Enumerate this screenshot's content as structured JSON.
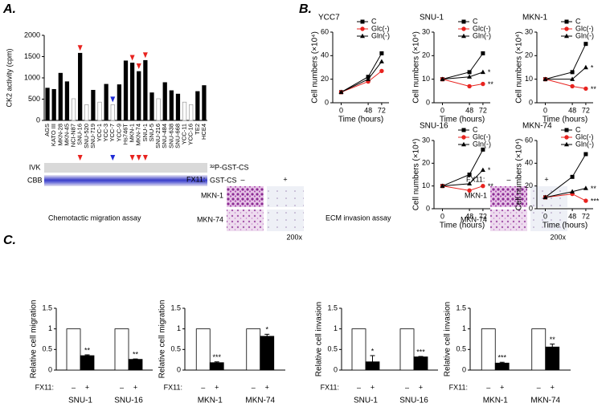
{
  "figure": {
    "panel_labels": [
      "A.",
      "B.",
      "C."
    ],
    "blot": {
      "rows": [
        "IVK",
        "CBB"
      ],
      "bands": [
        "³²P-GST-CS",
        "GST-CS"
      ]
    },
    "assays": [
      "Chemotactic migration assay",
      "ECM invasion assay"
    ],
    "micrographs": [
      {
        "treatment_label": "FX11:",
        "conditions": [
          "–",
          "+"
        ],
        "cell_lines": [
          "MKN-1",
          "MKN-74"
        ],
        "magnification": "200x"
      },
      {
        "treatment_label": "FX11:",
        "conditions": [
          "–",
          "+"
        ],
        "cell_lines": [
          "MKN-1",
          "MKN-74"
        ],
        "magnification": "200x"
      }
    ]
  },
  "chart_data": [
    {
      "type": "bar",
      "ylabel": "CK2 activity (cpm)",
      "categories": [
        "AGS",
        "KATO III",
        "MKN-28",
        "MKN-45",
        "NCI-N87",
        "SNU-16",
        "SNU-520",
        "SNU-719",
        "YCC-1",
        "YCC-3",
        "YCC-7",
        "YCC-9",
        "Hs746T",
        "MKN-1",
        "MKN-74",
        "SNU-1",
        "SNU-5",
        "SNU-216",
        "SNU-484",
        "SNU-638",
        "SNU-668",
        "YCC-11",
        "YCC-16",
        "TE2",
        "HCE4"
      ],
      "values": [
        760,
        730,
        1110,
        910,
        510,
        1580,
        370,
        710,
        430,
        850,
        370,
        840,
        1400,
        1350,
        1150,
        1410,
        650,
        510,
        890,
        700,
        620,
        430,
        370,
        680,
        820
      ],
      "colors": [
        "#000000",
        "#000000",
        "#000000",
        "#000000",
        "#ffffff",
        "#000000",
        "#ffffff",
        "#000000",
        "#ffffff",
        "#000000",
        "#ffffff",
        "#000000",
        "#000000",
        "#000000",
        "#000000",
        "#000000",
        "#000000",
        "#ffffff",
        "#000000",
        "#000000",
        "#000000",
        "#ffffff",
        "#ffffff",
        "#000000",
        "#000000"
      ],
      "arrow_colors": [
        null,
        null,
        null,
        null,
        null,
        "#e8231f",
        null,
        null,
        null,
        null,
        "#1e2bd6",
        null,
        null,
        "#e8231f",
        "#e8231f",
        "#e8231f",
        null,
        null,
        null,
        null,
        null,
        null,
        null,
        null,
        null
      ],
      "ylim": [
        0,
        2000
      ],
      "yticks": [
        0,
        500,
        1000,
        1500,
        2000
      ]
    },
    {
      "type": "line",
      "title": "YCC7",
      "ylabel": "Cell numbers (×10⁴)",
      "xlabel": "Time (hours)",
      "x": [
        0,
        48,
        72
      ],
      "xlim": [
        -15,
        85
      ],
      "xticks": [
        0,
        48,
        72
      ],
      "ylim": [
        0,
        60
      ],
      "yticks": [
        0,
        20,
        40,
        60
      ],
      "series": [
        {
          "name": "C",
          "color": "#000000",
          "marker": "square",
          "values": [
            9,
            22,
            42
          ]
        },
        {
          "name": "Glc(-)",
          "color": "#e8231f",
          "marker": "circle",
          "values": [
            9,
            18,
            27
          ]
        },
        {
          "name": "Gln(-)",
          "color": "#000000",
          "marker": "triangle",
          "values": [
            9,
            20,
            35
          ]
        }
      ]
    },
    {
      "type": "line",
      "title": "SNU-1",
      "ylabel": "Cell numbers (×10⁴)",
      "xlabel": "Time (hours)",
      "x": [
        0,
        48,
        72
      ],
      "xlim": [
        -15,
        85
      ],
      "xticks": [
        0,
        48,
        72
      ],
      "ylim": [
        0,
        30
      ],
      "yticks": [
        0,
        10,
        20,
        30
      ],
      "series": [
        {
          "name": "C",
          "color": "#000000",
          "marker": "square",
          "values": [
            10,
            13,
            21
          ]
        },
        {
          "name": "Glc(-)",
          "color": "#e8231f",
          "marker": "circle",
          "values": [
            10,
            7,
            8
          ],
          "annotation": "**"
        },
        {
          "name": "Gln(-)",
          "color": "#000000",
          "marker": "triangle",
          "values": [
            10,
            11,
            13
          ],
          "annotation": "*"
        }
      ]
    },
    {
      "type": "line",
      "title": "MKN-1",
      "ylabel": "Cell numbers (×10⁴)",
      "xlabel": "Time (hours)",
      "x": [
        0,
        48,
        72
      ],
      "xlim": [
        -15,
        85
      ],
      "xticks": [
        0,
        48,
        72
      ],
      "ylim": [
        0,
        30
      ],
      "yticks": [
        0,
        10,
        20,
        30
      ],
      "series": [
        {
          "name": "C",
          "color": "#000000",
          "marker": "square",
          "values": [
            10,
            13,
            25
          ]
        },
        {
          "name": "Glc(-)",
          "color": "#e8231f",
          "marker": "circle",
          "values": [
            10,
            7,
            6
          ],
          "annotation": "**"
        },
        {
          "name": "Gln(-)",
          "color": "#000000",
          "marker": "triangle",
          "values": [
            10,
            10,
            15
          ],
          "annotation": "*"
        }
      ]
    },
    {
      "type": "line",
      "title": "SNU-16",
      "ylabel": "Cell numbers (×10⁴)",
      "xlabel": "Time (hours)",
      "x": [
        0,
        48,
        72
      ],
      "xlim": [
        -15,
        85
      ],
      "xticks": [
        0,
        48,
        72
      ],
      "ylim": [
        0,
        30
      ],
      "yticks": [
        0,
        10,
        20,
        30
      ],
      "series": [
        {
          "name": "C",
          "color": "#000000",
          "marker": "square",
          "values": [
            10,
            15,
            26
          ]
        },
        {
          "name": "Glc(-)",
          "color": "#e8231f",
          "marker": "circle",
          "values": [
            10,
            8,
            10
          ],
          "annotation": "**"
        },
        {
          "name": "Gln(-)",
          "color": "#000000",
          "marker": "triangle",
          "values": [
            10,
            11,
            17
          ],
          "annotation": "*"
        }
      ]
    },
    {
      "type": "line",
      "title": "MKN-74",
      "ylabel": "Cell numbers (×10⁴)",
      "xlabel": "Time (hours)",
      "x": [
        0,
        48,
        72
      ],
      "xlim": [
        -15,
        85
      ],
      "xticks": [
        0,
        48,
        72
      ],
      "ylim": [
        0,
        60
      ],
      "yticks": [
        0,
        20,
        40,
        60
      ],
      "series": [
        {
          "name": "C",
          "color": "#000000",
          "marker": "square",
          "values": [
            10,
            28,
            48
          ]
        },
        {
          "name": "Glc(-)",
          "color": "#e8231f",
          "marker": "circle",
          "values": [
            10,
            13,
            7
          ],
          "annotation": "***"
        },
        {
          "name": "Gln(-)",
          "color": "#000000",
          "marker": "triangle",
          "values": [
            10,
            15,
            18
          ],
          "annotation": "**"
        }
      ]
    },
    {
      "type": "groupbar",
      "ylabel": "Relative  cell migration",
      "treatment_label": "FX11:",
      "categories": [
        "SNU-1",
        "SNU-16"
      ],
      "ylim": [
        0,
        1.5
      ],
      "yticks": [
        0,
        0.5,
        1,
        1.5
      ],
      "series": [
        {
          "name": "–",
          "color": "#ffffff",
          "values": [
            1,
            1
          ]
        },
        {
          "name": "+",
          "color": "#000000",
          "values": [
            0.35,
            0.26
          ],
          "errors": [
            0.02,
            0.01
          ],
          "annotations": [
            "**",
            "**"
          ]
        }
      ]
    },
    {
      "type": "groupbar",
      "ylabel": "Relative  cell migration",
      "treatment_label": "FX11:",
      "categories": [
        "MKN-1",
        "MKN-74"
      ],
      "ylim": [
        0,
        1.5
      ],
      "yticks": [
        0,
        0.5,
        1,
        1.5
      ],
      "series": [
        {
          "name": "–",
          "color": "#ffffff",
          "values": [
            1,
            1
          ]
        },
        {
          "name": "+",
          "color": "#000000",
          "values": [
            0.18,
            0.82
          ],
          "errors": [
            0.02,
            0.05
          ],
          "annotations": [
            "***",
            "*"
          ]
        }
      ]
    },
    {
      "type": "groupbar",
      "ylabel": "Relative  cell invasion",
      "treatment_label": "FX11:",
      "categories": [
        "SNU-1",
        "SNU-16"
      ],
      "ylim": [
        0,
        1.5
      ],
      "yticks": [
        0,
        0.5,
        1,
        1.5
      ],
      "series": [
        {
          "name": "–",
          "color": "#ffffff",
          "values": [
            1,
            1
          ]
        },
        {
          "name": "+",
          "color": "#000000",
          "values": [
            0.2,
            0.32
          ],
          "errors": [
            0.15,
            0.01
          ],
          "annotations": [
            "*",
            "***"
          ]
        }
      ]
    },
    {
      "type": "groupbar",
      "ylabel": "Relative  cell invasion",
      "treatment_label": "FX11:",
      "categories": [
        "MKN-1",
        "MKN-74"
      ],
      "ylim": [
        0,
        1.5
      ],
      "yticks": [
        0,
        0.5,
        1,
        1.5
      ],
      "series": [
        {
          "name": "–",
          "color": "#ffffff",
          "values": [
            1,
            1
          ]
        },
        {
          "name": "+",
          "color": "#000000",
          "values": [
            0.17,
            0.56
          ],
          "errors": [
            0.02,
            0.07
          ],
          "annotations": [
            "***",
            "**"
          ]
        }
      ]
    }
  ]
}
